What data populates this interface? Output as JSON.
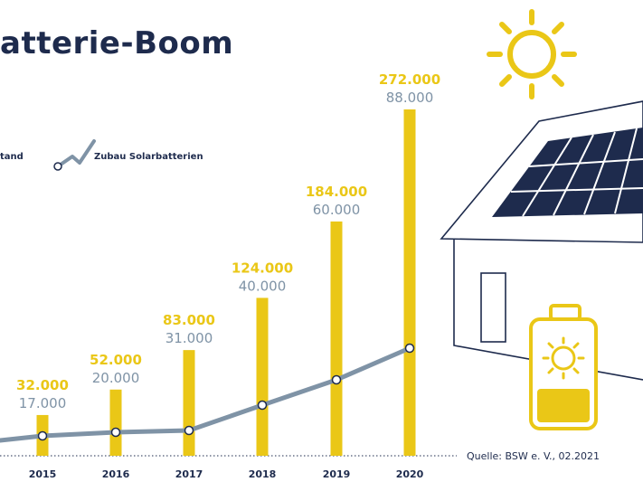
{
  "title": "atterie-Boom",
  "legend": {
    "bars_label": "tand",
    "line_label": "Zubau Solarbatterien"
  },
  "source": "Quelle: BSW e. V., 02.2021",
  "colors": {
    "bar": "#eac717",
    "line": "#7f93a6",
    "text_dark": "#1e2b4d",
    "label_line": "#7f93a6",
    "house": "#1e2b4d",
    "panel": "#1e2b4d"
  },
  "icons": [
    "sun-icon",
    "house-icon",
    "solar-panel-icon",
    "battery-icon"
  ],
  "chart_data": {
    "type": "bar",
    "categories": [
      "2015",
      "2016",
      "2017",
      "2018",
      "2019",
      "2020"
    ],
    "series": [
      {
        "name": "tand",
        "type": "bar",
        "values": [
          32000,
          52000,
          83000,
          124000,
          184000,
          272000
        ],
        "labels": [
          "32.000",
          "52.000",
          "83.000",
          "124.000",
          "184.000",
          "272.000"
        ]
      },
      {
        "name": "Zubau Solarbatterien",
        "type": "line",
        "values": [
          17000,
          20000,
          31000,
          40000,
          60000,
          88000
        ],
        "labels": [
          "17.000",
          "20.000",
          "31.000",
          "40.000",
          "60.000",
          "88.000"
        ]
      }
    ]
  }
}
